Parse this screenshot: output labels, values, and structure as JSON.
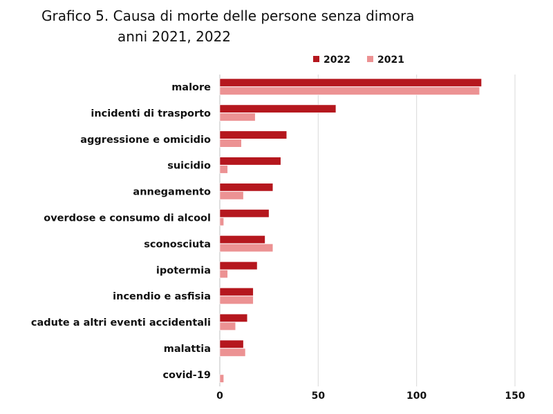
{
  "header": {
    "title_line1": "Grafico 5.  Causa di morte delle persone senza dimora",
    "title_line2": "anni 2021, 2022"
  },
  "colors": {
    "series_2022": "#b5171e",
    "series_2021": "#ec9293",
    "grid": "#d9d9d9"
  },
  "chart_data": {
    "type": "bar",
    "orientation": "horizontal",
    "title": "Grafico 5.  Causa di morte delle persone senza dimora anni 2021, 2022",
    "categories": [
      "malore",
      "incidenti di trasporto",
      "aggressione e omicidio",
      "suicidio",
      "annegamento",
      "overdose e consumo di alcool",
      "sconosciuta",
      "ipotermia",
      "incendio e asfisia",
      "cadute a altri eventi accidentali",
      "malattia",
      "covid-19"
    ],
    "series": [
      {
        "name": "2022",
        "values": [
          133,
          59,
          34,
          31,
          27,
          25,
          23,
          19,
          17,
          14,
          12,
          0
        ]
      },
      {
        "name": "2021",
        "values": [
          132,
          18,
          11,
          4,
          12,
          2,
          27,
          4,
          17,
          8,
          13,
          2
        ]
      }
    ],
    "xlim": [
      0,
      150
    ],
    "xticks": [
      0,
      50,
      100,
      150
    ],
    "grid": true,
    "legend_position": "top-right"
  }
}
